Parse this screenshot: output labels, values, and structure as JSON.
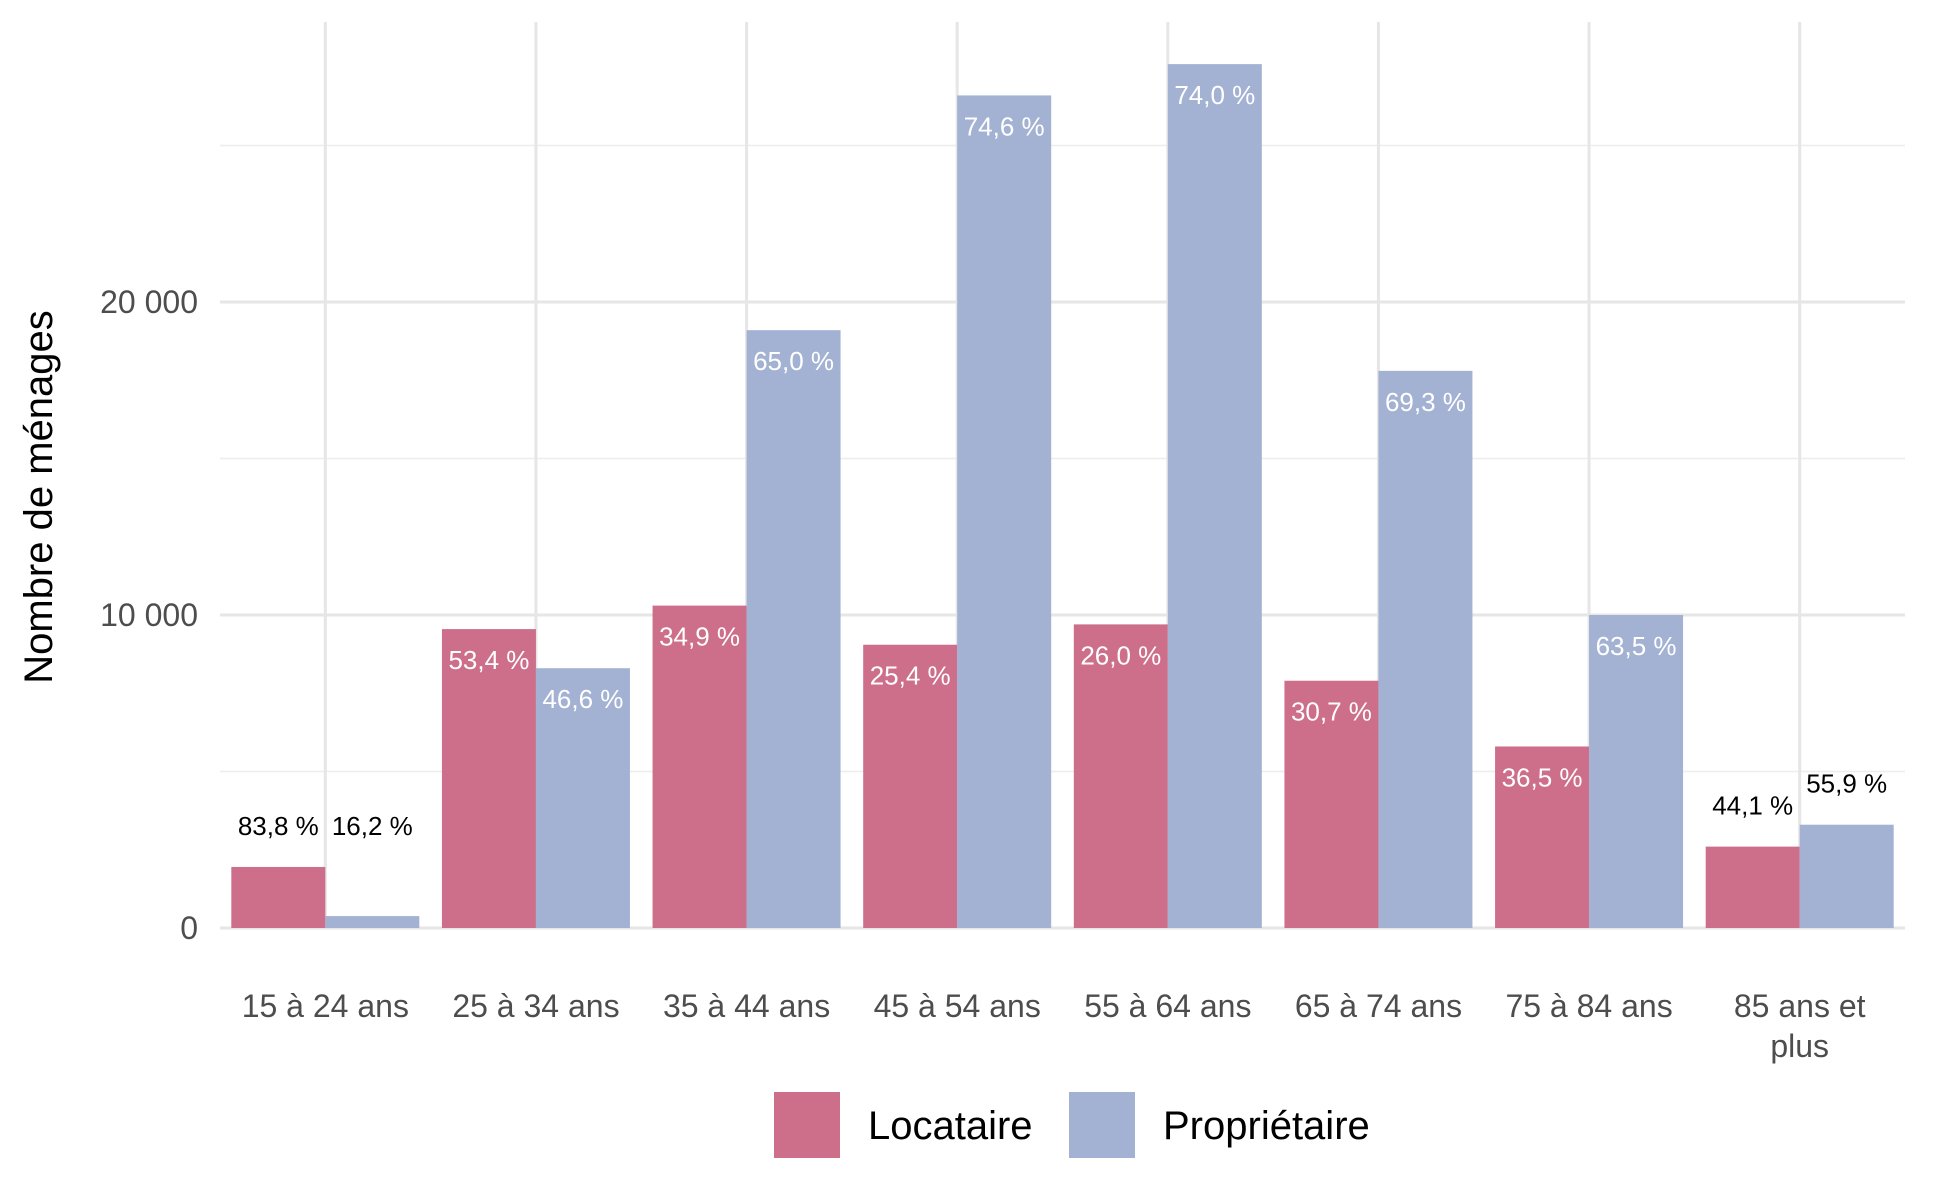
{
  "chart_data": {
    "type": "bar",
    "title": "",
    "xlabel": "",
    "ylabel": "Nombre de ménages",
    "ylim": [
      0,
      28500
    ],
    "yticks": [
      0,
      10000,
      20000
    ],
    "ytick_labels": [
      "0",
      "10 000",
      "20 000"
    ],
    "grid": true,
    "legend_position": "bottom",
    "categories": [
      "15 à 24 ans",
      "25 à 34 ans",
      "35 à 44 ans",
      "45 à 54 ans",
      "55 à 64 ans",
      "65 à 74 ans",
      "75 à 84 ans",
      "85 ans et plus"
    ],
    "category_lines": [
      [
        "15 à 24 ans"
      ],
      [
        "25 à 34 ans"
      ],
      [
        "35 à 44 ans"
      ],
      [
        "45 à 54 ans"
      ],
      [
        "55 à 64 ans"
      ],
      [
        "65 à 74 ans"
      ],
      [
        "75 à 84 ans"
      ],
      [
        "85 ans et",
        "plus"
      ]
    ],
    "series": [
      {
        "name": "Locataire",
        "color": "#cd6f8a",
        "values": [
          1950,
          9550,
          10300,
          9050,
          9700,
          7900,
          5800,
          2600
        ],
        "labels": [
          "83,8 %",
          "53,4 %",
          "34,9 %",
          "25,4 %",
          "26,0 %",
          "30,7 %",
          "36,5 %",
          "44,1 %"
        ]
      },
      {
        "name": "Propriétaire",
        "color": "#a3b1d2",
        "values": [
          380,
          8300,
          19100,
          26600,
          27600,
          17800,
          10000,
          3300
        ],
        "labels": [
          "16,2 %",
          "46,6 %",
          "65,0 %",
          "74,6 %",
          "74,0 %",
          "69,3 %",
          "63,5 %",
          "55,9 %"
        ]
      }
    ]
  }
}
